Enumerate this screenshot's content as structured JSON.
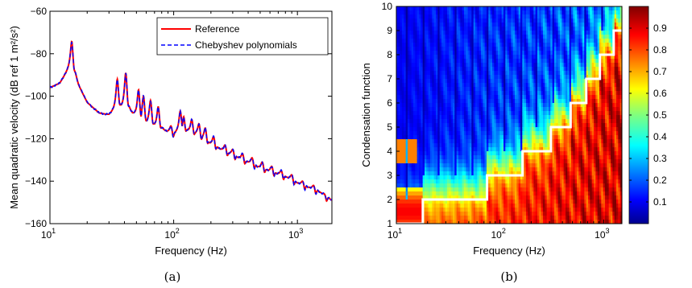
{
  "chart_data": [
    {
      "panel": "(a)",
      "type": "line",
      "xlabel": "Frequency (Hz)",
      "ylabel": "Mean quadratic velocity (dB ref 1 m²/s²)",
      "xscale": "log",
      "xlim": [
        10,
        1900
      ],
      "ylim": [
        -160,
        -60
      ],
      "x_ticks": [
        {
          "value": 10,
          "label": "10"
        },
        {
          "value": 100,
          "label": "10"
        },
        {
          "value": 1000,
          "label": "10"
        }
      ],
      "x_tick_exponents": [
        "1",
        "2",
        "3"
      ],
      "y_ticks": [
        -160,
        -140,
        -120,
        -100,
        -80,
        -60
      ],
      "legend": {
        "placement": "top-right",
        "entries": [
          "Reference",
          "Chebyshev polynomials"
        ]
      },
      "series": [
        {
          "name": "Reference",
          "color": "#ff0000",
          "style": "solid"
        },
        {
          "name": "Chebyshev polynomials",
          "color": "#0000ff",
          "style": "dashed"
        }
      ],
      "trend": {
        "x": [
          10,
          12,
          14,
          15,
          17,
          20,
          25,
          30,
          35,
          40,
          50,
          60,
          80,
          100,
          120,
          150,
          200,
          300,
          500,
          800,
          1000,
          1500,
          1900
        ],
        "y": [
          -96,
          -94,
          -88,
          -85,
          -95,
          -103,
          -108,
          -109,
          -106,
          -106,
          -110,
          -113,
          -116,
          -118,
          -116,
          -118,
          -123,
          -128,
          -134,
          -138,
          -141,
          -145,
          -149
        ]
      },
      "resonances": [
        {
          "f": 15,
          "db": -74
        },
        {
          "f": 35,
          "db": -92
        },
        {
          "f": 41,
          "db": -89
        },
        {
          "f": 52,
          "db": -97
        },
        {
          "f": 57,
          "db": -100
        },
        {
          "f": 65,
          "db": -102
        },
        {
          "f": 75,
          "db": -105
        },
        {
          "f": 95,
          "db": -114
        },
        {
          "f": 113,
          "db": -107
        },
        {
          "f": 120,
          "db": -109
        },
        {
          "f": 140,
          "db": -111
        },
        {
          "f": 160,
          "db": -113
        },
        {
          "f": 180,
          "db": -115
        },
        {
          "f": 210,
          "db": -119
        },
        {
          "f": 260,
          "db": -123
        },
        {
          "f": 300,
          "db": -125
        },
        {
          "f": 360,
          "db": -127
        },
        {
          "f": 430,
          "db": -129
        },
        {
          "f": 520,
          "db": -131
        },
        {
          "f": 620,
          "db": -133
        },
        {
          "f": 740,
          "db": -135
        },
        {
          "f": 900,
          "db": -137
        },
        {
          "f": 1100,
          "db": -140
        },
        {
          "f": 1350,
          "db": -142
        },
        {
          "f": 1650,
          "db": -146
        }
      ]
    },
    {
      "panel": "(b)",
      "type": "heatmap",
      "xlabel": "Frequency (Hz)",
      "ylabel": "Condensation function",
      "xscale": "log",
      "xlim": [
        10,
        1500
      ],
      "ylim": [
        1,
        10
      ],
      "x_ticks": [
        {
          "value": 10,
          "label": "10"
        },
        {
          "value": 100,
          "label": "10"
        },
        {
          "value": 1000,
          "label": "10"
        }
      ],
      "x_tick_exponents": [
        "1",
        "2",
        "3"
      ],
      "y_ticks": [
        1,
        2,
        3,
        4,
        5,
        6,
        7,
        8,
        9,
        10
      ],
      "colorbar": {
        "range": [
          0,
          1
        ],
        "ticks": [
          "0.1",
          "0.2",
          "0.3",
          "0.4",
          "0.5",
          "0.6",
          "0.7",
          "0.8",
          "0.9"
        ],
        "colormap": "jet"
      },
      "staircase_color": "#ffffff",
      "staircase": [
        {
          "from": 10,
          "to": 18,
          "level": 1
        },
        {
          "from": 18,
          "to": 75,
          "level": 2
        },
        {
          "from": 75,
          "to": 165,
          "level": 3
        },
        {
          "from": 165,
          "to": 310,
          "level": 4
        },
        {
          "from": 310,
          "to": 480,
          "level": 5
        },
        {
          "from": 480,
          "to": 680,
          "level": 6
        },
        {
          "from": 680,
          "to": 920,
          "level": 7
        },
        {
          "from": 920,
          "to": 1250,
          "level": 8
        },
        {
          "from": 1250,
          "to": 1500,
          "level": 9
        }
      ]
    }
  ],
  "captions": [
    "(a)",
    "(b)"
  ]
}
